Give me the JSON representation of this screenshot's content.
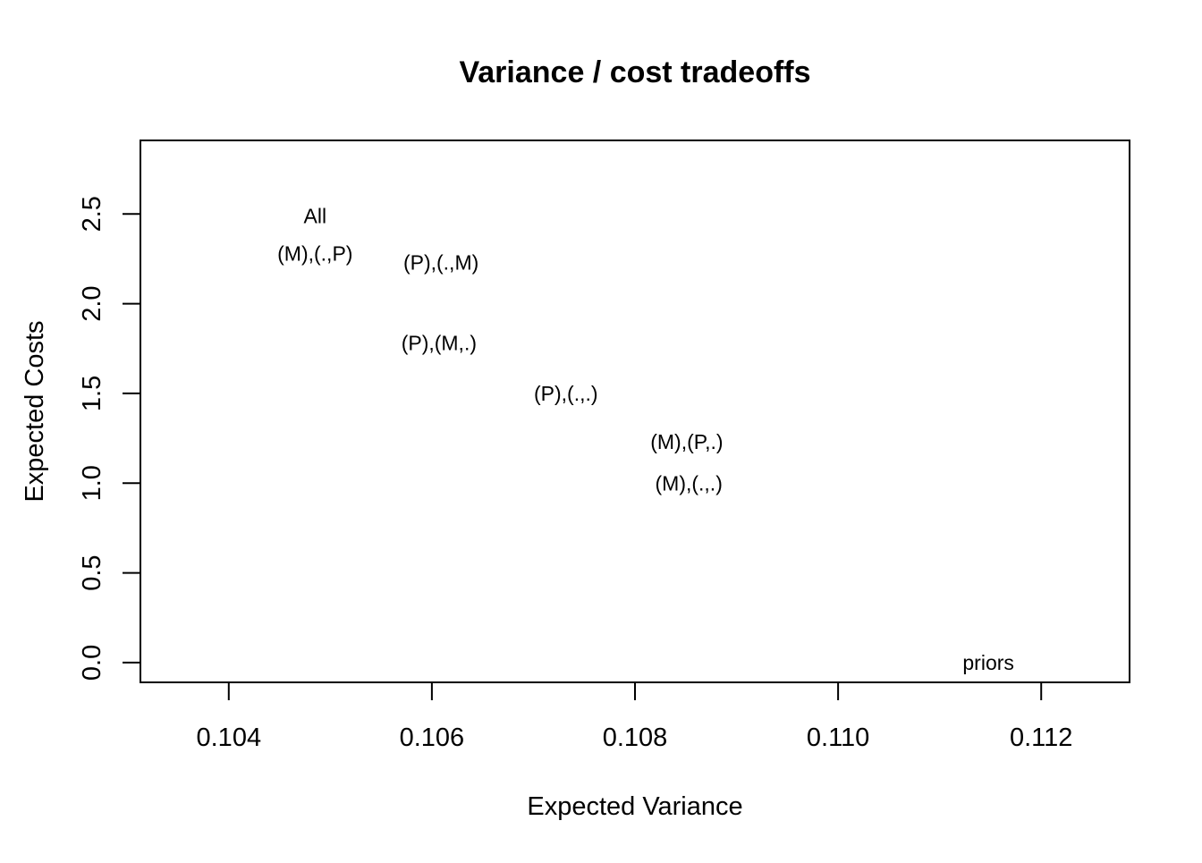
{
  "chart_data": {
    "type": "scatter",
    "title": "Variance / cost tradeoffs",
    "xlabel": "Expected Variance",
    "ylabel": "Expected Costs",
    "xlim": [
      0.10313,
      0.11287
    ],
    "ylim": [
      -0.11,
      2.91
    ],
    "xticks": [
      0.104,
      0.106,
      0.108,
      0.11,
      0.112
    ],
    "xtick_labels": [
      "0.104",
      "0.106",
      "0.108",
      "0.110",
      "0.112"
    ],
    "yticks": [
      0.0,
      0.5,
      1.0,
      1.5,
      2.0,
      2.5
    ],
    "ytick_labels": [
      "0.0",
      "0.5",
      "1.0",
      "1.5",
      "2.0",
      "2.5"
    ],
    "grid": false,
    "points": [
      {
        "label": "All",
        "x": 0.10485,
        "y": 2.49
      },
      {
        "label": "(M),(.,P)",
        "x": 0.10485,
        "y": 2.28
      },
      {
        "label": "(P),(.,M)",
        "x": 0.10609,
        "y": 2.23
      },
      {
        "label": "(P),(M,.)",
        "x": 0.10607,
        "y": 1.78
      },
      {
        "label": "(P),(.,.)",
        "x": 0.10732,
        "y": 1.5
      },
      {
        "label": "(M),(P,.)",
        "x": 0.10851,
        "y": 1.23
      },
      {
        "label": "(M),(.,.)",
        "x": 0.10853,
        "y": 1.0
      },
      {
        "label": "priors",
        "x": 0.11148,
        "y": 0.0
      }
    ]
  }
}
